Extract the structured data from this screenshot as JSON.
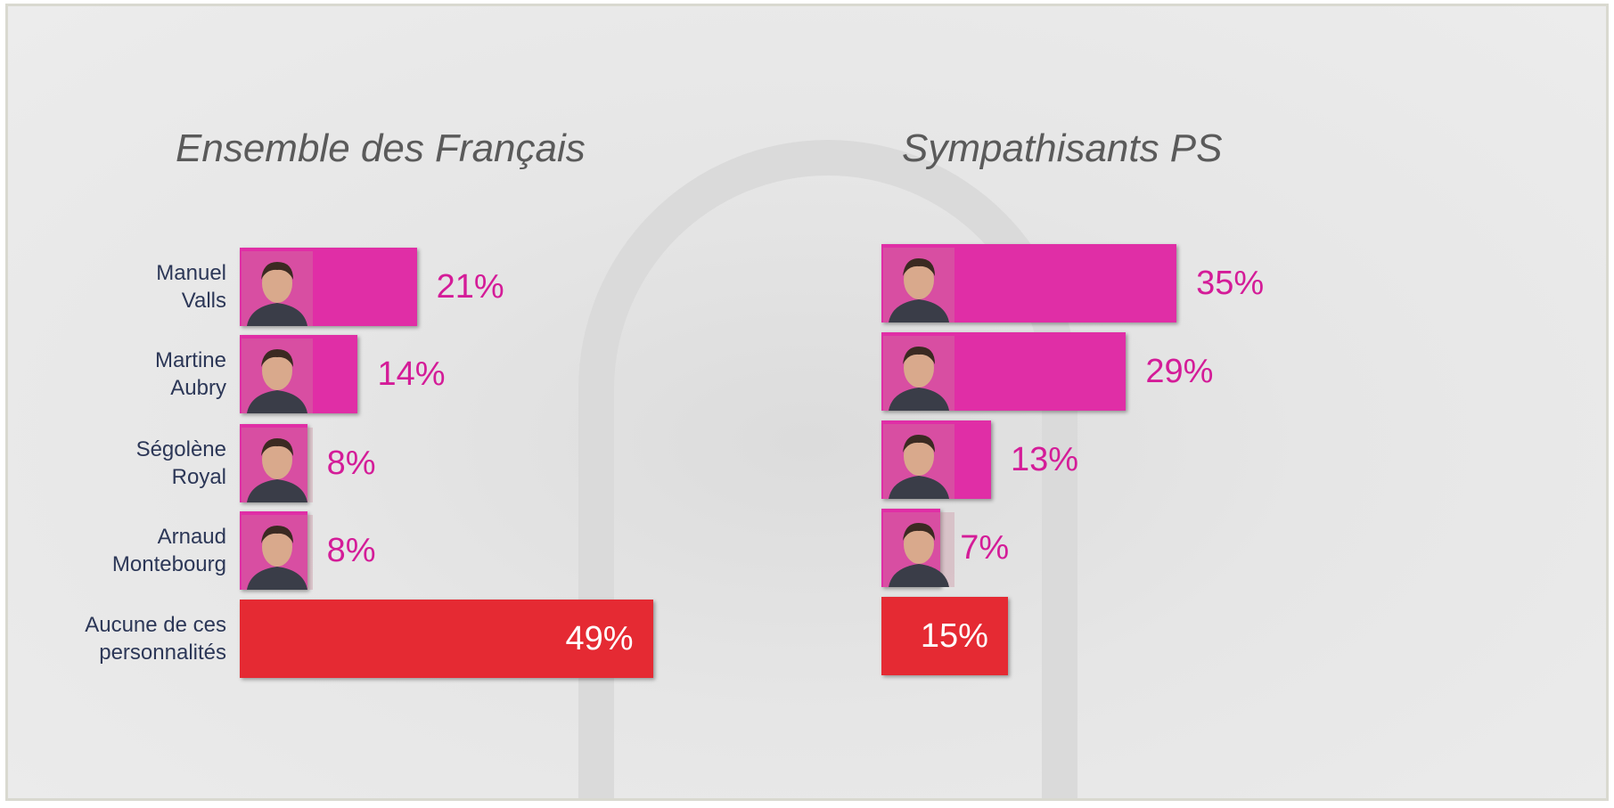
{
  "chart_data": [
    {
      "type": "bar",
      "title": "Ensemble des Français",
      "categories": [
        "Manuel\nValls",
        "Martine\nAubry",
        "Ségolène\nRoyal",
        "Arnaud\nMontebourg",
        "Aucune de ces\npersonnalités"
      ],
      "values": [
        21,
        14,
        8,
        8,
        49
      ],
      "value_labels": [
        "21%",
        "14%",
        "8%",
        "8%",
        "49%"
      ],
      "colors": [
        "#e02ea6",
        "#e02ea6",
        "#e02ea6",
        "#e02ea6",
        "#e52a33"
      ]
    },
    {
      "type": "bar",
      "title": "Sympathisants PS",
      "values": [
        35,
        29,
        13,
        7,
        15
      ],
      "value_labels": [
        "35%",
        "29%",
        "13%",
        "7%",
        "15%"
      ],
      "colors": [
        "#e02ea6",
        "#e02ea6",
        "#e02ea6",
        "#e02ea6",
        "#e52a33"
      ]
    }
  ]
}
